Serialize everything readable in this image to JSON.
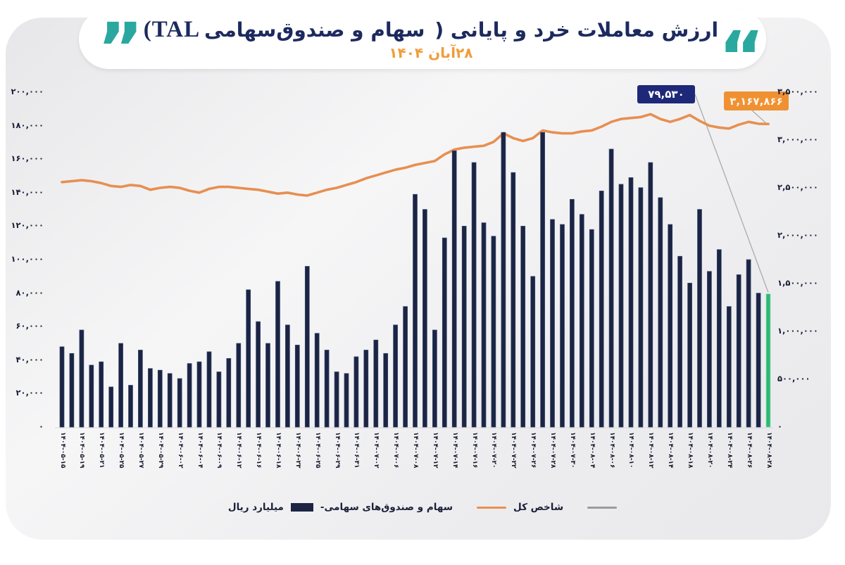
{
  "header": {
    "left_quote": "”",
    "right_quote": "“",
    "title_segments": {
      "latin": "(TAL",
      "fund": "سهام و صندوق‌سهامی",
      "main": "ارزش معاملات خرد و پایانی ("
    },
    "subtitle_date": "۲۸آبان ۱۴۰۴"
  },
  "legend": {
    "bar_label_right_of_swatch": "سهام و صندوق‌های سهامی-",
    "bar_label_left_of_swatch": "میلیارد ریال",
    "line_label": "شاخص کل"
  },
  "chart_data": {
    "type": "bar",
    "title": "ارزش معاملات خرد و پایانی (سهام و صندوق‌سهامی (TAL",
    "subtitle": "۲۸آبان ۱۴۰۴",
    "grid": false,
    "legend_position": "bottom",
    "bar_series": {
      "name": "سهام و صندوق‌های سهامی- میلیارد ریال",
      "axis": "left",
      "color": "#1b2442",
      "values": [
        48000,
        44000,
        58000,
        37000,
        39000,
        24000,
        50000,
        25000,
        46000,
        35000,
        34000,
        32000,
        29000,
        38000,
        39000,
        45000,
        33000,
        41000,
        50000,
        82000,
        63000,
        50000,
        87000,
        61000,
        49000,
        96000,
        56000,
        46000,
        33000,
        32000,
        42000,
        46000,
        52000,
        44000,
        61000,
        72000,
        139000,
        130000,
        58000,
        113000,
        165000,
        120000,
        158000,
        122000,
        114000,
        176000,
        152000,
        120000,
        90000,
        176000,
        124000,
        121000,
        136000,
        127000,
        118000,
        141000,
        166000,
        145000,
        149000,
        143000,
        158000,
        137000,
        121000,
        102000,
        86000,
        130000,
        93000,
        106000,
        72000,
        91000,
        100000,
        80000,
        79530
      ]
    },
    "line_series": {
      "name": "شاخص کل",
      "axis": "right",
      "color": "#e78f51",
      "values": [
        2560000,
        2570000,
        2580000,
        2570000,
        2550000,
        2520000,
        2510000,
        2530000,
        2520000,
        2480000,
        2500000,
        2510000,
        2500000,
        2470000,
        2450000,
        2490000,
        2510000,
        2510000,
        2500000,
        2490000,
        2480000,
        2460000,
        2440000,
        2450000,
        2430000,
        2420000,
        2450000,
        2480000,
        2500000,
        2530000,
        2560000,
        2600000,
        2630000,
        2660000,
        2690000,
        2710000,
        2740000,
        2760000,
        2780000,
        2850000,
        2900000,
        2920000,
        2930000,
        2940000,
        2980000,
        3070000,
        3020000,
        2990000,
        3020000,
        3100000,
        3080000,
        3070000,
        3070000,
        3090000,
        3100000,
        3140000,
        3190000,
        3220000,
        3230000,
        3240000,
        3270000,
        3220000,
        3190000,
        3220000,
        3260000,
        3200000,
        3150000,
        3130000,
        3120000,
        3160000,
        3190000,
        3170000,
        3167866
      ]
    },
    "highlight_last_bar": {
      "color": "#2eb873",
      "value": 79530
    },
    "annotations": {
      "bar": {
        "label": "۷۹,۵۳۰",
        "value": 79530,
        "box_color": "#1e2878"
      },
      "line": {
        "label": "۳,۱۶۷,۸۶۶",
        "value": 3167866,
        "box_color": "#ef9133"
      }
    },
    "x_tick_labels": [
      "۱۴۰۴-۰۵-۱۵",
      "۱۴۰۴-۰۵-۱۹",
      "۱۴۰۴-۰۵-۲۱",
      "۱۴۰۴-۰۵-۲۵",
      "۱۴۰۴-۰۵-۲۷",
      "۱۴۰۴-۰۵-۲۹",
      "۱۴۰۴-۰۶-۰۲",
      "۱۴۰۴-۰۶-۰۴",
      "۱۴۰۴-۰۶-۰۹",
      "۱۴۰۴-۰۶-۱۲",
      "۱۴۰۴-۰۶-۱۶",
      "۱۴۰۴-۰۶-۱۸",
      "۱۴۰۴-۰۶-۲۳",
      "۱۴۰۴-۰۶-۲۵",
      "۱۴۰۴-۰۶-۲۹",
      "۱۴۰۴-۰۶-۳۱",
      "۱۴۰۴-۰۷-۰۲",
      "۱۴۰۴-۰۷-۰۶",
      "۱۴۰۴-۰۷-۰۸",
      "۱۴۰۴-۰۷-۱۲",
      "۱۴۰۴-۰۷-۱۴",
      "۱۴۰۴-۰۷-۱۶",
      "۱۴۰۴-۰۷-۲۰",
      "۱۴۰۴-۰۷-۲۲",
      "۱۴۰۴-۰۷-۲۶",
      "۱۴۰۴-۰۷-۲۸",
      "۱۴۰۴-۰۷-۳۰",
      "۱۴۰۴-۰۸-۰۴",
      "۱۴۰۴-۰۸-۰۶",
      "۱۴۰۴-۰۸-۱۰",
      "۱۴۰۴-۰۸-۱۲",
      "۱۴۰۴-۰۸-۱۴",
      "۱۴۰۴-۰۸-۱۸",
      "۱۴۰۴-۰۸-۲۰",
      "۱۴۰۴-۰۸-۲۴",
      "۱۴۰۴-۰۸-۲۶",
      "۱۴۰۴-۰۸-۲۸"
    ],
    "left_axis": {
      "range": [
        0,
        200000
      ],
      "tick_step": 20000,
      "tick_labels": [
        "۲۰۰,۰۰۰",
        "۱۸۰,۰۰۰",
        "۱۶۰,۰۰۰",
        "۱۴۰,۰۰۰",
        "۱۲۰,۰۰۰",
        "۱۰۰,۰۰۰",
        "۸۰,۰۰۰",
        "۶۰,۰۰۰",
        "۴۰,۰۰۰",
        "۲۰,۰۰۰",
        "۰"
      ]
    },
    "right_axis": {
      "range": [
        0,
        3500000
      ],
      "tick_step": 500000,
      "tick_labels": [
        "۳,۵۰۰,۰۰۰",
        "۳,۰۰۰,۰۰۰",
        "۲,۵۰۰,۰۰۰",
        "۲,۰۰۰,۰۰۰",
        "۱,۵۰۰,۰۰۰",
        "۱,۰۰۰,۰۰۰",
        "۵۰۰,۰۰۰",
        "۰"
      ]
    }
  }
}
